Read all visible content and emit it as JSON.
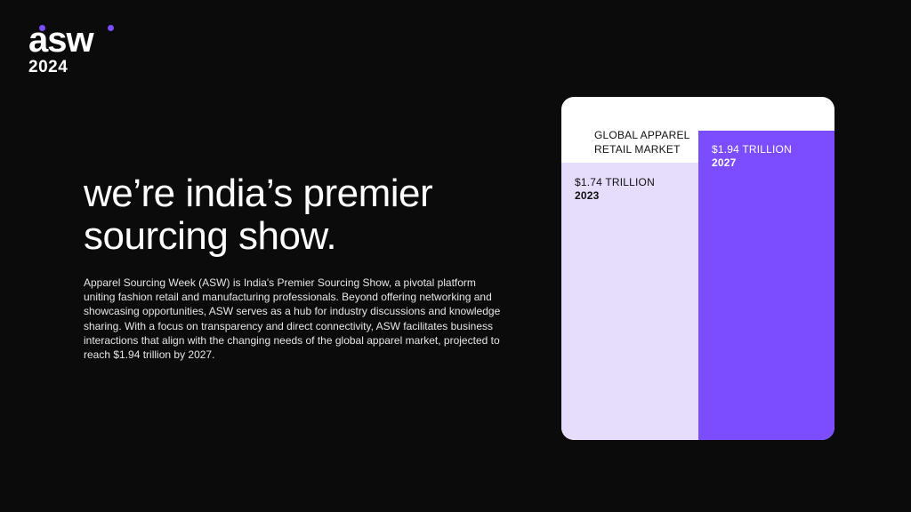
{
  "brand": {
    "logo_text": "asw",
    "year": "2024",
    "accent_color": "#7b4dff"
  },
  "hero": {
    "headline_line1": "we’re india’s premier",
    "headline_line2": "sourcing show.",
    "body": "Apparel Sourcing Week (ASW) is India's Premier Sourcing Show, a pivotal platform uniting fashion retail and manufacturing professionals. Beyond offering networking and showcasing opportunities, ASW serves as a hub for industry discussions and knowledge sharing. With a focus on transparency and direct connectivity, ASW facilitates business interactions that align with the changing needs of the global apparel market, projected to reach $1.94 trillion by 2027."
  },
  "market_card": {
    "title_line1": "GLOBAL APPAREL",
    "title_line2": "RETAIL MARKET"
  },
  "chart_data": {
    "type": "bar",
    "categories": [
      "2023",
      "2027"
    ],
    "values": [
      1.74,
      1.94
    ],
    "value_labels": [
      "$1.74 TRILLION",
      "$1.94 TRILLION"
    ],
    "colors": [
      "#e6dcfb",
      "#7b4dff"
    ],
    "ylim": [
      0,
      2.15
    ]
  }
}
